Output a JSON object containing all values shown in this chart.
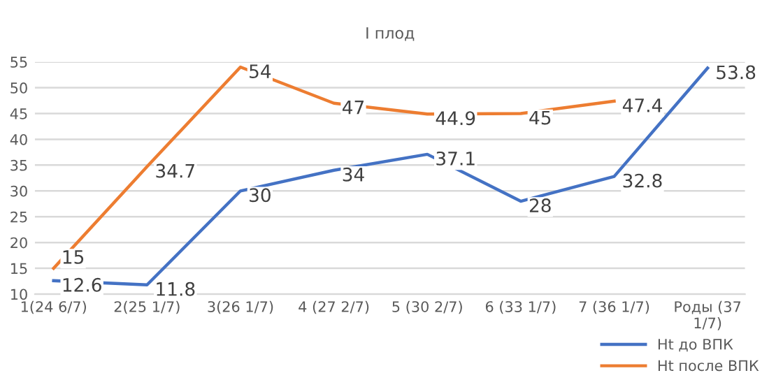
{
  "chart_data": {
    "type": "line",
    "title": "I плод",
    "categories": [
      "1(24 6/7)",
      "2(25 1/7)",
      "3(26 1/7)",
      "4 (27 2/7)",
      "5 (30 2/7)",
      "6 (33 1/7)",
      "7 (36 1/7)",
      "Роды (37\n1/7)"
    ],
    "series": [
      {
        "name": "Ht до ВПК",
        "color": "#4472c4",
        "values": [
          12.6,
          11.8,
          30,
          34,
          37.1,
          28,
          32.8,
          53.8
        ]
      },
      {
        "name": "Ht после ВПК",
        "color": "#ed7d31",
        "values": [
          15,
          34.7,
          54,
          47,
          44.9,
          45,
          47.4,
          null
        ]
      }
    ],
    "ylim": [
      10,
      55
    ],
    "yticks": [
      10,
      15,
      20,
      25,
      30,
      35,
      40,
      45,
      50,
      55
    ],
    "grid": "y",
    "legend": "bottom right",
    "data_labels": true,
    "marker": "none",
    "line_style": "solid"
  }
}
